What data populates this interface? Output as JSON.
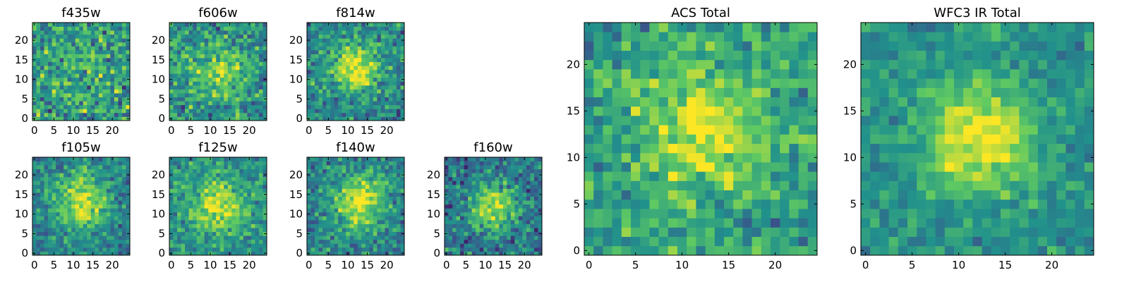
{
  "figure": {
    "title": ""
  },
  "colormap": {
    "name": "viridis",
    "stops": [
      "#440154",
      "#3b528b",
      "#21918c",
      "#5ec962",
      "#fde725"
    ]
  },
  "chart_data": [
    {
      "type": "heatmap",
      "title": "f435w",
      "grid_size": [
        25,
        25
      ],
      "x_ticks": [
        0,
        5,
        10,
        15,
        20
      ],
      "y_ticks": [
        0,
        5,
        10,
        15,
        20
      ],
      "xlim": [
        -0.5,
        24.5
      ],
      "ylim": [
        -0.5,
        24.5
      ],
      "profile": {
        "peak_x": 12,
        "peak_y": 12,
        "sigma": 5,
        "peak_value": 0.6,
        "background": 0.55,
        "noise": 0.35
      },
      "xlabel": "",
      "ylabel": ""
    },
    {
      "type": "heatmap",
      "title": "f606w",
      "grid_size": [
        25,
        25
      ],
      "x_ticks": [
        0,
        5,
        10,
        15,
        20
      ],
      "y_ticks": [
        0,
        5,
        10,
        15,
        20
      ],
      "xlim": [
        -0.5,
        24.5
      ],
      "ylim": [
        -0.5,
        24.5
      ],
      "profile": {
        "peak_x": 12,
        "peak_y": 12,
        "sigma": 5,
        "peak_value": 0.8,
        "background": 0.5,
        "noise": 0.3
      },
      "xlabel": "",
      "ylabel": ""
    },
    {
      "type": "heatmap",
      "title": "f814w",
      "grid_size": [
        25,
        25
      ],
      "x_ticks": [
        0,
        5,
        10,
        15,
        20
      ],
      "y_ticks": [
        0,
        5,
        10,
        15,
        20
      ],
      "xlim": [
        -0.5,
        24.5
      ],
      "ylim": [
        -0.5,
        24.5
      ],
      "profile": {
        "peak_x": 12,
        "peak_y": 13,
        "sigma": 4.5,
        "peak_value": 0.95,
        "background": 0.45,
        "noise": 0.28
      },
      "xlabel": "",
      "ylabel": ""
    },
    {
      "type": "heatmap",
      "title": "f105w",
      "grid_size": [
        25,
        25
      ],
      "x_ticks": [
        0,
        5,
        10,
        15,
        20
      ],
      "y_ticks": [
        0,
        5,
        10,
        15,
        20
      ],
      "xlim": [
        -0.5,
        24.5
      ],
      "ylim": [
        -0.5,
        24.5
      ],
      "profile": {
        "peak_x": 12,
        "peak_y": 13,
        "sigma": 4.5,
        "peak_value": 0.95,
        "background": 0.45,
        "noise": 0.25
      },
      "xlabel": "",
      "ylabel": ""
    },
    {
      "type": "heatmap",
      "title": "f125w",
      "grid_size": [
        25,
        25
      ],
      "x_ticks": [
        0,
        5,
        10,
        15,
        20
      ],
      "y_ticks": [
        0,
        5,
        10,
        15,
        20
      ],
      "xlim": [
        -0.5,
        24.5
      ],
      "ylim": [
        -0.5,
        24.5
      ],
      "profile": {
        "peak_x": 12,
        "peak_y": 12,
        "sigma": 5,
        "peak_value": 0.92,
        "background": 0.5,
        "noise": 0.25
      },
      "xlabel": "",
      "ylabel": ""
    },
    {
      "type": "heatmap",
      "title": "f140w",
      "grid_size": [
        25,
        25
      ],
      "x_ticks": [
        0,
        5,
        10,
        15,
        20
      ],
      "y_ticks": [
        0,
        5,
        10,
        15,
        20
      ],
      "xlim": [
        -0.5,
        24.5
      ],
      "ylim": [
        -0.5,
        24.5
      ],
      "profile": {
        "peak_x": 13,
        "peak_y": 13,
        "sigma": 4.5,
        "peak_value": 0.95,
        "background": 0.45,
        "noise": 0.25
      },
      "xlabel": "",
      "ylabel": ""
    },
    {
      "type": "heatmap",
      "title": "f160w",
      "grid_size": [
        25,
        25
      ],
      "x_ticks": [
        0,
        5,
        10,
        15,
        20
      ],
      "y_ticks": [
        0,
        5,
        10,
        15,
        20
      ],
      "xlim": [
        -0.5,
        24.5
      ],
      "ylim": [
        -0.5,
        24.5
      ],
      "profile": {
        "peak_x": 12,
        "peak_y": 12,
        "sigma": 4,
        "peak_value": 0.9,
        "background": 0.4,
        "noise": 0.28
      },
      "xlabel": "",
      "ylabel": ""
    },
    {
      "type": "heatmap",
      "title": "ACS Total",
      "grid_size": [
        25,
        25
      ],
      "x_ticks": [
        0,
        5,
        10,
        15,
        20
      ],
      "y_ticks": [
        0,
        5,
        10,
        15,
        20
      ],
      "xlim": [
        -0.5,
        24.5
      ],
      "ylim": [
        -0.5,
        24.5
      ],
      "profile": {
        "peak_x": 12,
        "peak_y": 13,
        "sigma": 5,
        "peak_value": 0.95,
        "background": 0.55,
        "noise": 0.25
      },
      "xlabel": "",
      "ylabel": ""
    },
    {
      "type": "heatmap",
      "title": "WFC3 IR Total",
      "grid_size": [
        25,
        25
      ],
      "x_ticks": [
        0,
        5,
        10,
        15,
        20
      ],
      "y_ticks": [
        0,
        5,
        10,
        15,
        20
      ],
      "xlim": [
        -0.5,
        24.5
      ],
      "ylim": [
        -0.5,
        24.5
      ],
      "profile": {
        "peak_x": 12,
        "peak_y": 12,
        "sigma": 4,
        "peak_value": 1.0,
        "background": 0.5,
        "noise": 0.18
      },
      "xlabel": "",
      "ylabel": ""
    }
  ]
}
